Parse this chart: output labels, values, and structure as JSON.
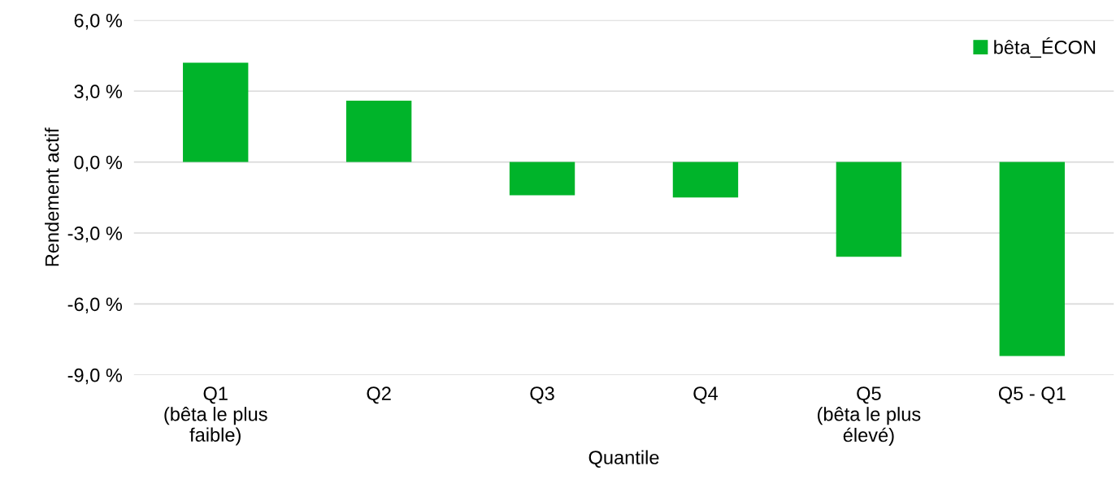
{
  "chart_data": {
    "type": "bar",
    "categories": [
      "Q1\n(bêta le plus\nfaible)",
      "Q2",
      "Q3",
      "Q4",
      "Q5\n(bêta le plus\nélevé)",
      "Q5 - Q1"
    ],
    "series": [
      {
        "name": "bêta_ÉCON",
        "color": "#00b42a",
        "values": [
          4.2,
          2.6,
          -1.4,
          -1.5,
          -4.0,
          -8.2
        ]
      }
    ],
    "xlabel": "Quantile",
    "ylabel": "Rendement actif",
    "ylim": [
      -9,
      6
    ],
    "yticks": [
      {
        "value": -9,
        "label": "-9,0 %"
      },
      {
        "value": -6,
        "label": "-6,0 %"
      },
      {
        "value": -3,
        "label": "-3,0 %"
      },
      {
        "value": 0,
        "label": "0,0 %"
      },
      {
        "value": 3,
        "label": "3,0 %"
      },
      {
        "value": 6,
        "label": "6,0 %"
      }
    ],
    "grid": "y",
    "legend": "top right"
  }
}
